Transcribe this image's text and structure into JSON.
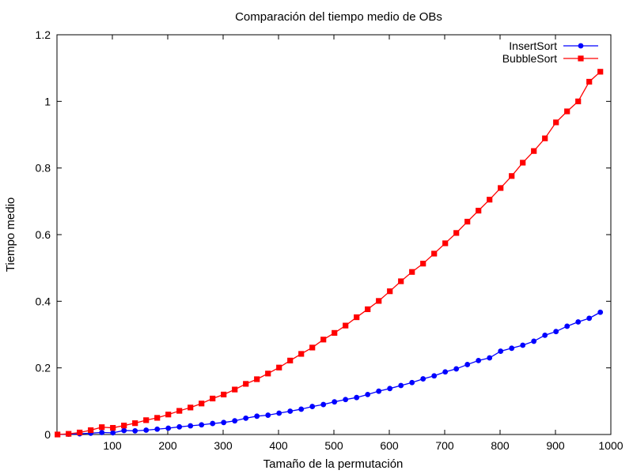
{
  "chart_data": {
    "type": "line",
    "title": "Comparación del tiempo medio de OBs",
    "xlabel": "Tamaño de la permutación",
    "ylabel": "Tiempo medio",
    "xlim": [
      0,
      1000
    ],
    "ylim": [
      0,
      1.2
    ],
    "xticks": [
      100,
      200,
      300,
      400,
      500,
      600,
      700,
      800,
      900,
      1000
    ],
    "xtick_labels": [
      "100",
      "200",
      "300",
      "400",
      "500",
      "600",
      "700",
      "800",
      "900",
      "1000"
    ],
    "yticks": [
      0,
      0.2,
      0.4,
      0.6,
      0.8,
      1.0,
      1.2
    ],
    "ytick_labels": [
      "0",
      "0.2",
      "0.4",
      "0.6",
      "0.8",
      "1",
      "1.2"
    ],
    "legend_position": "top-right",
    "grid": false,
    "x": [
      1,
      21,
      41,
      61,
      81,
      101,
      121,
      141,
      161,
      181,
      201,
      221,
      241,
      261,
      281,
      301,
      321,
      341,
      361,
      381,
      401,
      421,
      441,
      461,
      481,
      501,
      521,
      541,
      561,
      581,
      601,
      621,
      641,
      661,
      681,
      701,
      721,
      741,
      761,
      781,
      801,
      821,
      841,
      861,
      881,
      901,
      921,
      941,
      961,
      981
    ],
    "series": [
      {
        "name": "InsertSort",
        "color": "#0000ff",
        "marker": "circle",
        "values": [
          0,
          0.001,
          0.002,
          0.004,
          0.006,
          0.005,
          0.012,
          0.011,
          0.013,
          0.016,
          0.019,
          0.023,
          0.026,
          0.029,
          0.033,
          0.036,
          0.041,
          0.049,
          0.055,
          0.058,
          0.064,
          0.07,
          0.076,
          0.084,
          0.09,
          0.098,
          0.105,
          0.111,
          0.12,
          0.13,
          0.138,
          0.147,
          0.156,
          0.167,
          0.176,
          0.188,
          0.197,
          0.21,
          0.222,
          0.23,
          0.25,
          0.259,
          0.268,
          0.28,
          0.298,
          0.309,
          0.325,
          0.338,
          0.349,
          0.367
        ]
      },
      {
        "name": "BubbleSort",
        "color": "#ff0000",
        "marker": "square",
        "values": [
          0,
          0.002,
          0.006,
          0.013,
          0.022,
          0.02,
          0.027,
          0.034,
          0.043,
          0.05,
          0.06,
          0.071,
          0.081,
          0.093,
          0.108,
          0.12,
          0.135,
          0.152,
          0.166,
          0.183,
          0.201,
          0.222,
          0.242,
          0.261,
          0.285,
          0.305,
          0.327,
          0.352,
          0.376,
          0.401,
          0.43,
          0.46,
          0.488,
          0.513,
          0.543,
          0.574,
          0.605,
          0.639,
          0.672,
          0.705,
          0.74,
          0.776,
          0.816,
          0.851,
          0.889,
          0.937,
          0.97,
          1.0,
          1.059,
          1.089
        ]
      }
    ]
  }
}
